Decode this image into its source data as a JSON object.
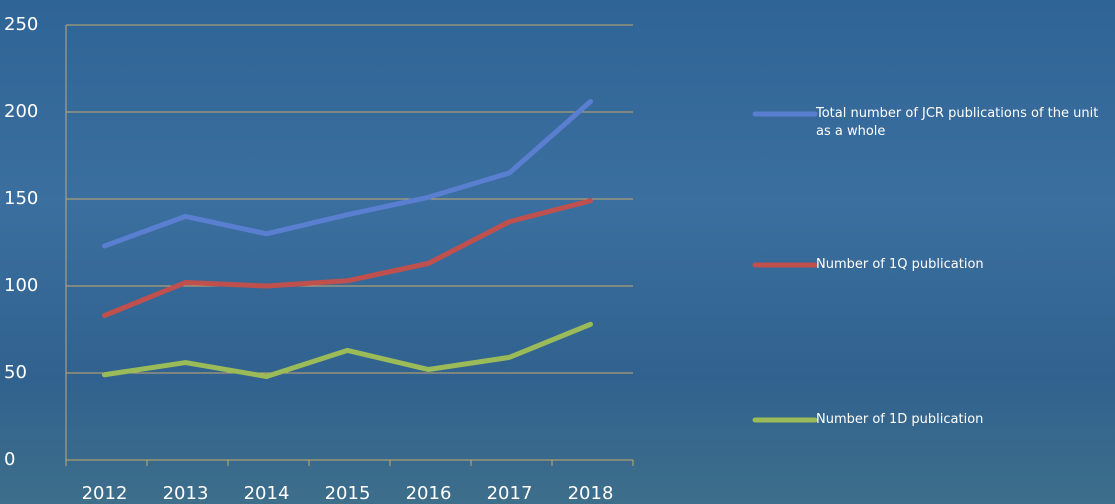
{
  "chart_data": {
    "type": "line",
    "categories": [
      "2012",
      "2013",
      "2014",
      "2015",
      "2016",
      "2017",
      "2018"
    ],
    "series": [
      {
        "name": "Total number of JCR publications of the unit as a whole",
        "color": "#5b7fd0",
        "values": [
          123,
          140,
          130,
          141,
          151,
          165,
          206
        ]
      },
      {
        "name": "Number of 1Q publication",
        "color": "#c0504d",
        "values": [
          83,
          102,
          100,
          103,
          113,
          137,
          149
        ]
      },
      {
        "name": "Number of 1D publication",
        "color": "#9bbb59",
        "values": [
          49,
          56,
          48,
          63,
          52,
          59,
          78
        ]
      }
    ],
    "ylim": [
      0,
      250
    ],
    "yticks": [
      0,
      50,
      100,
      150,
      200,
      250
    ],
    "grid": true,
    "legend": "right"
  }
}
